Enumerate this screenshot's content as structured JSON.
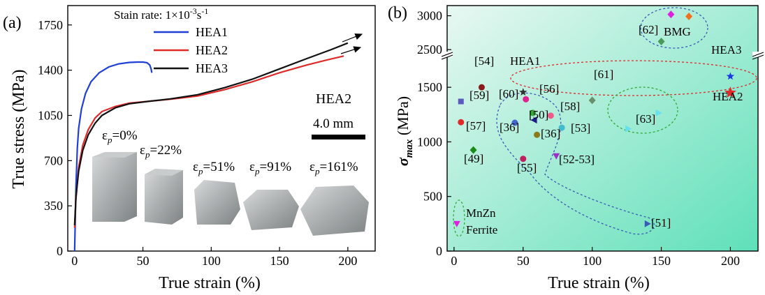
{
  "chart_data": [
    {
      "type": "line",
      "panel_label": "(a)",
      "xlabel": "True strain (%)",
      "ylabel": "True stress (MPa)",
      "xlim": [
        -5,
        220
      ],
      "ylim": [
        0,
        1900
      ],
      "x_ticks": [
        "0",
        "50",
        "100",
        "150",
        "200"
      ],
      "y_ticks": [
        "0",
        "350",
        "700",
        "1050",
        "1400",
        "1750"
      ],
      "legend_title_prefix": "Stain rate: 1×10",
      "legend_title_exp": "-3",
      "legend_title_mid": "s",
      "legend_title_exp2": "-1",
      "series": [
        {
          "name": "HEA1",
          "color": "#1f3fd6",
          "points": [
            [
              0,
              0
            ],
            [
              0.5,
              250
            ],
            [
              1,
              500
            ],
            [
              2,
              800
            ],
            [
              3,
              950
            ],
            [
              5,
              1100
            ],
            [
              8,
              1220
            ],
            [
              12,
              1310
            ],
            [
              18,
              1380
            ],
            [
              25,
              1425
            ],
            [
              32,
              1448
            ],
            [
              40,
              1460
            ],
            [
              46,
              1463
            ],
            [
              50,
              1463
            ],
            [
              53,
              1458
            ],
            [
              55,
              1440
            ],
            [
              56,
              1410
            ],
            [
              56.5,
              1380
            ]
          ]
        },
        {
          "name": "HEA2",
          "color": "#e02a2a",
          "points": [
            [
              0,
              180
            ],
            [
              1,
              400
            ],
            [
              3,
              650
            ],
            [
              6,
              820
            ],
            [
              10,
              940
            ],
            [
              15,
              1030
            ],
            [
              20,
              1080
            ],
            [
              30,
              1120
            ],
            [
              40,
              1145
            ],
            [
              55,
              1160
            ],
            [
              70,
              1175
            ],
            [
              90,
              1200
            ],
            [
              110,
              1250
            ],
            [
              130,
              1310
            ],
            [
              150,
              1380
            ],
            [
              170,
              1440
            ],
            [
              185,
              1480
            ],
            [
              197,
              1510
            ]
          ]
        },
        {
          "name": "HEA3",
          "color": "#111111",
          "points": [
            [
              0,
              200
            ],
            [
              1,
              420
            ],
            [
              3,
              620
            ],
            [
              6,
              780
            ],
            [
              10,
              900
            ],
            [
              15,
              990
            ],
            [
              20,
              1050
            ],
            [
              30,
              1110
            ],
            [
              40,
              1140
            ],
            [
              55,
              1160
            ],
            [
              70,
              1178
            ],
            [
              90,
              1210
            ],
            [
              110,
              1265
            ],
            [
              130,
              1330
            ],
            [
              150,
              1410
            ],
            [
              170,
              1490
            ],
            [
              188,
              1560
            ],
            [
              200,
              1610
            ]
          ]
        }
      ],
      "annotations": {
        "sample_name": "HEA2",
        "scale_bar": "4.0 mm",
        "strain_labels": [
          {
            "symbol": "ε",
            "sub": "p",
            "value": "=0%"
          },
          {
            "symbol": "ε",
            "sub": "p",
            "value": "=22%"
          },
          {
            "symbol": "ε",
            "sub": "p",
            "value": "=51%"
          },
          {
            "symbol": "ε",
            "sub": "p",
            "value": "=91%"
          },
          {
            "symbol": "ε",
            "sub": "p",
            "value": "=161%"
          }
        ]
      }
    },
    {
      "type": "scatter",
      "panel_label": "(b)",
      "xlabel": "True strain (%)",
      "ylabel_symbol": "σ",
      "ylabel_sub": "max",
      "ylabel_unit": " (MPa)",
      "xlim": [
        -5,
        220
      ],
      "ylim_lower": [
        0,
        1750
      ],
      "ylim_upper": [
        2450,
        3150
      ],
      "x_ticks": [
        "0",
        "50",
        "100",
        "150",
        "200"
      ],
      "y_ticks_lower": [
        "0",
        "500",
        "1000",
        "1500"
      ],
      "y_ticks_upper": [
        "2500",
        "3000"
      ],
      "background_colors": [
        "#e8f8f2",
        "#5fe0b8"
      ],
      "points": [
        {
          "label": "[54]",
          "x": 20,
          "y": 1500,
          "marker": "circle",
          "color": "#8b1a1a"
        },
        {
          "label": "HEA1",
          "x": 50,
          "y": 1455,
          "marker": "star",
          "color": "#333333"
        },
        {
          "label": "[59]",
          "x": 5,
          "y": 1370,
          "marker": "square",
          "color": "#5b5bbf"
        },
        {
          "label": "[60]",
          "x": 52,
          "y": 1390,
          "marker": "circle",
          "color": "#e0208f"
        },
        {
          "label": "[56]",
          "x": 57,
          "y": 1265,
          "marker": "circle",
          "color": "#33aa33"
        },
        {
          "label": "[58]",
          "x": 70,
          "y": 1240,
          "marker": "circle",
          "color": "#f05a8a"
        },
        {
          "label": "[61]",
          "x": 100,
          "y": 1380,
          "marker": "diamond",
          "color": "#6b8f6b"
        },
        {
          "label": "[57]",
          "x": 5,
          "y": 1180,
          "marker": "circle",
          "color": "#e02a2a"
        },
        {
          "label": "[50]",
          "x": 58,
          "y": 1200,
          "marker": "triangle-left",
          "color": "#1a1a8b"
        },
        {
          "label": "[36]",
          "x": 44,
          "y": 1175,
          "marker": "circle",
          "color": "#4466cc"
        },
        {
          "label": "[36]",
          "x": 60,
          "y": 1065,
          "marker": "circle",
          "color": "#8b7a1a"
        },
        {
          "label": "[53]",
          "x": 78,
          "y": 1130,
          "marker": "circle",
          "color": "#44bbcc"
        },
        {
          "label": "[63]",
          "x": 126,
          "y": 1120,
          "marker": "triangle-right",
          "color": "#66e0ee"
        },
        {
          "label": "[63]",
          "x": 148,
          "y": 1265,
          "marker": "triangle-right",
          "color": "#66e0ee"
        },
        {
          "label": "[49]",
          "x": 14,
          "y": 925,
          "marker": "diamond",
          "color": "#1a8b1a"
        },
        {
          "label": "[55]",
          "x": 50,
          "y": 845,
          "marker": "circle",
          "color": "#c02060"
        },
        {
          "label": "[52-53]",
          "x": 74,
          "y": 870,
          "marker": "triangle-down",
          "color": "#9b30c8"
        },
        {
          "label": "[51]",
          "x": 140,
          "y": 250,
          "marker": "triangle-right",
          "color": "#3a5ab8"
        },
        {
          "label": "MnZn Ferrite",
          "x": 2,
          "y": 250,
          "marker": "triangle-down",
          "color": "#e020e0"
        },
        {
          "label": "HEA3",
          "x": 200,
          "y": 1600,
          "marker": "star",
          "color": "#1a3ae0"
        },
        {
          "label": "HEA2",
          "x": 200,
          "y": 1450,
          "marker": "star",
          "color": "#e02a2a"
        },
        {
          "label": "BMG",
          "x": 157,
          "y": 3020,
          "marker": "diamond",
          "color": "#e020e0"
        },
        {
          "label": "BMG",
          "x": 170,
          "y": 2990,
          "marker": "diamond",
          "color": "#f07020"
        },
        {
          "label": "BMG",
          "x": 150,
          "y": 2620,
          "marker": "diamond",
          "color": "#4a9a5a"
        }
      ],
      "text_labels": [
        "[54]",
        "HEA1",
        "[59]",
        "[60]",
        "[56]",
        "[58]",
        "[61]",
        "[57]",
        "[50]",
        "[36]",
        "[36]",
        "[53]",
        "[63]",
        "[49]",
        "[55]",
        "[52-53]",
        "[51]",
        "MnZn",
        "Ferrite",
        "HEA3",
        "HEA2",
        "[62]",
        "BMG"
      ]
    }
  ]
}
